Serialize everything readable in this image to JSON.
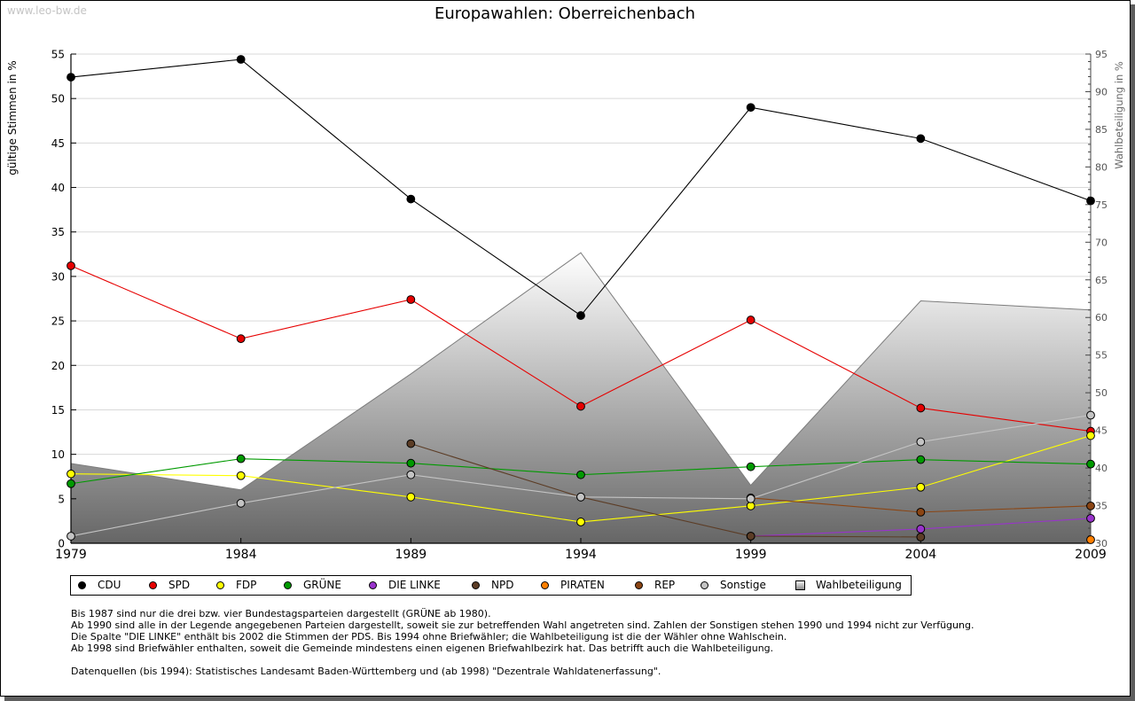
{
  "watermark": "www.leo-bw.de",
  "chart_data": {
    "type": "line",
    "title": "Europawahlen: Oberreichenbach",
    "xlabel": "",
    "ylabel": "gültige Stimmen in %",
    "y2label": "Wahlbeteiligung in %",
    "x": [
      1979,
      1984,
      1989,
      1994,
      1999,
      2004,
      2009
    ],
    "xticks": [
      "1979",
      "1984",
      "1989",
      "1994",
      "1999",
      "2004",
      "2009"
    ],
    "ylim": [
      0,
      55
    ],
    "yticks": [
      0,
      5,
      10,
      15,
      20,
      25,
      30,
      35,
      40,
      45,
      50,
      55
    ],
    "y2lim": [
      30,
      95
    ],
    "y2ticks": [
      30,
      35,
      40,
      45,
      50,
      55,
      60,
      65,
      70,
      75,
      80,
      85,
      90,
      95
    ],
    "grid": true,
    "legend_position": "bottom",
    "series": [
      {
        "name": "CDU",
        "type": "line",
        "axis": "left",
        "color": "#000000",
        "values": [
          52.4,
          54.4,
          38.7,
          25.6,
          49.0,
          45.5,
          38.5
        ]
      },
      {
        "name": "SPD",
        "type": "line",
        "axis": "left",
        "color": "#e60000",
        "values": [
          31.2,
          23.0,
          27.4,
          15.4,
          25.1,
          15.2,
          12.6
        ]
      },
      {
        "name": "FDP",
        "type": "line",
        "axis": "left",
        "color": "#ffff00",
        "values": [
          7.8,
          7.6,
          5.2,
          2.4,
          4.2,
          6.3,
          12.1
        ]
      },
      {
        "name": "GRÜNE",
        "type": "line",
        "axis": "left",
        "color": "#009a00",
        "values": [
          6.7,
          9.5,
          9.0,
          7.7,
          8.6,
          9.4,
          8.9
        ]
      },
      {
        "name": "DIE LINKE",
        "type": "line",
        "axis": "left",
        "color": "#9933cc",
        "values": [
          null,
          null,
          null,
          null,
          0.8,
          1.6,
          2.8
        ]
      },
      {
        "name": "NPD",
        "type": "line",
        "axis": "left",
        "color": "#5c3d26",
        "values": [
          null,
          null,
          11.2,
          5.2,
          0.8,
          0.7,
          null
        ]
      },
      {
        "name": "PIRATEN",
        "type": "line",
        "axis": "left",
        "color": "#ff8000",
        "values": [
          null,
          null,
          null,
          null,
          null,
          null,
          0.4
        ]
      },
      {
        "name": "REP",
        "type": "line",
        "axis": "left",
        "color": "#8b4513",
        "values": [
          null,
          null,
          null,
          null,
          5.1,
          3.5,
          4.2
        ]
      },
      {
        "name": "Sonstige",
        "type": "line",
        "axis": "left",
        "color": "#c4c4c4",
        "values": [
          0.8,
          4.5,
          7.7,
          5.2,
          5.0,
          11.4,
          14.4
        ]
      },
      {
        "name": "Wahlbeteiligung",
        "type": "area",
        "axis": "right",
        "color": "#9a9a9a",
        "values": [
          40.6,
          37.1,
          52.5,
          68.6,
          37.7,
          62.2,
          61.0
        ]
      }
    ]
  },
  "notes": [
    "Bis 1987 sind nur die drei bzw. vier Bundestagsparteien dargestellt (GRÜNE ab 1980).",
    "Ab 1990 sind alle in der Legende angegebenen Parteien dargestellt, soweit sie zur betreffenden Wahl angetreten sind. Zahlen der Sonstigen stehen 1990 und 1994 nicht zur Verfügung.",
    "Die Spalte \"DIE LINKE\" enthält bis 2002 die Stimmen der PDS. Bis 1994 ohne Briefwähler; die Wahlbeteiligung ist die der Wähler ohne Wahlschein.",
    "Ab 1998 sind Briefwähler enthalten, soweit die Gemeinde mindestens einen eigenen Briefwahlbezirk hat. Das betrifft auch die Wahlbeteiligung.",
    "",
    "Datenquellen (bis 1994): Statistisches Landesamt Baden-Württemberg und (ab 1998) \"Dezentrale Wahldatenerfassung\"."
  ]
}
